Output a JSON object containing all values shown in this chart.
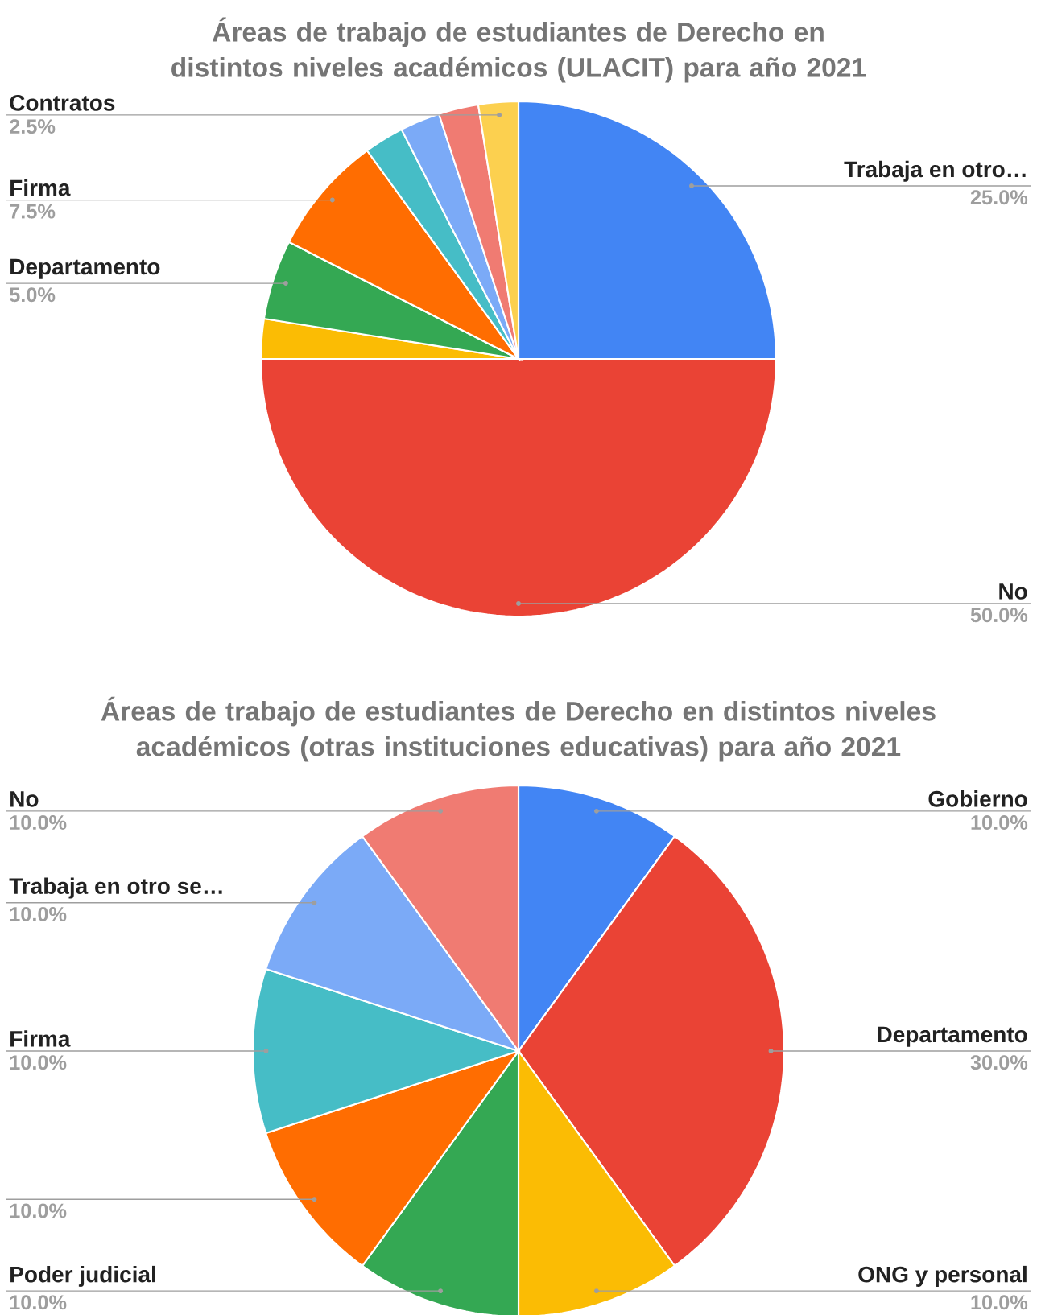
{
  "chart_data": [
    {
      "type": "pie",
      "title": "Áreas de trabajo de estudiantes de Derecho en distintos niveles académicos (ULACIT) para año 2021",
      "categories": [
        "Trabaja en otro…",
        "No",
        null,
        "Departamento",
        "Firma",
        null,
        null,
        null,
        "Contratos"
      ],
      "values": [
        25,
        50,
        2.5,
        5,
        7.5,
        2.5,
        2.5,
        2.5,
        2.5
      ],
      "colors": [
        "#4285f4",
        "#ea4335",
        "#fbbc04",
        "#34a853",
        "#ff6d01",
        "#46bdc6",
        "#7baaf7",
        "#f07b72",
        "#fcd04f"
      ],
      "value_labels": [
        "25.0%",
        "50.0%",
        null,
        "5.0%",
        "7.5%",
        null,
        null,
        null,
        "2.5%"
      ]
    },
    {
      "type": "pie",
      "title": "Áreas de trabajo de estudiantes de Derecho en distintos niveles académicos (otras instituciones educativas) para año 2021",
      "categories": [
        "Gobierno",
        "Departamento",
        "ONG y personal",
        "Poder judicial",
        null,
        "Firma",
        "Trabaja en otro se…",
        "No"
      ],
      "values": [
        10,
        30,
        10,
        10,
        10,
        10,
        10,
        10
      ],
      "colors": [
        "#4285f4",
        "#ea4335",
        "#fbbc04",
        "#34a853",
        "#ff6d01",
        "#46bdc6",
        "#7baaf7",
        "#f07b72"
      ],
      "value_labels": [
        "10.0%",
        "30.0%",
        "10.0%",
        "10.0%",
        "10.0%",
        "10.0%",
        "10.0%",
        "10.0%"
      ]
    }
  ]
}
